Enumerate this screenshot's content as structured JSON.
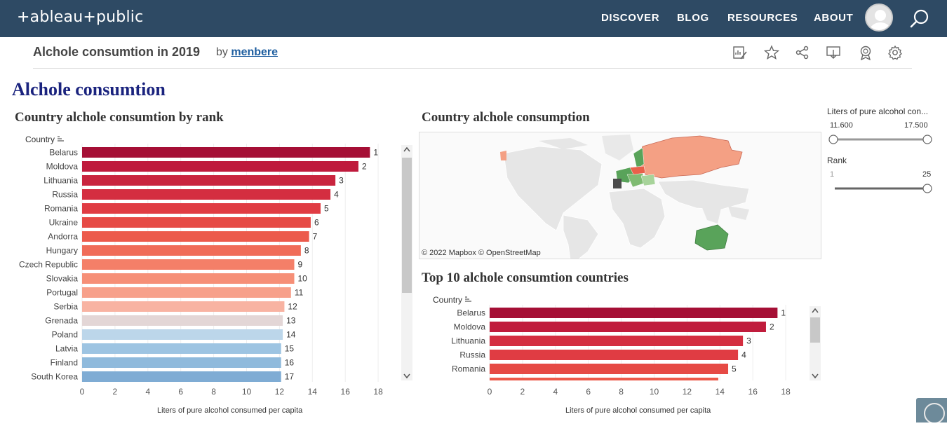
{
  "brand": {
    "logo_text": "+ableau+public"
  },
  "nav": {
    "discover": "DISCOVER",
    "blog": "BLOG",
    "resources": "RESOURCES",
    "about": "ABOUT"
  },
  "viz": {
    "title": "Alchole consumtion in 2019",
    "by": "by",
    "author": "menbere"
  },
  "dashboard": {
    "title": "Alchole consumtion"
  },
  "rank_sheet": {
    "title": "Country alchole consumtion by rank",
    "field_header": "Country",
    "axis_title": "Liters of pure alcohol consumed per capita"
  },
  "map_sheet": {
    "title": "Country alchole consumption",
    "attribution": "© 2022 Mapbox  © OpenStreetMap"
  },
  "top10_sheet": {
    "title": "Top 10  alchole consumtion countries",
    "field_header": "Country",
    "axis_title": "Liters of pure alcohol consumed per capita"
  },
  "filters": {
    "liters": {
      "title": "Liters of pure alcohol con...",
      "min": "11.600",
      "max": "17.500"
    },
    "rank": {
      "title": "Rank",
      "min": "1",
      "max": "25"
    }
  },
  "colors": {
    "topbar": "#2e4a64",
    "title_blue": "#1a237e"
  },
  "chart_data": [
    {
      "type": "bar",
      "orientation": "horizontal",
      "title": "Country alchole consumtion by rank",
      "xlabel": "Liters of pure alcohol consumed per capita",
      "xlim": [
        0,
        19
      ],
      "xticks": [
        "0",
        "2",
        "4",
        "6",
        "8",
        "10",
        "12",
        "14",
        "16",
        "18"
      ],
      "categories": [
        "Belarus",
        "Moldova",
        "Lithuania",
        "Russia",
        "Romania",
        "Ukraine",
        "Andorra",
        "Hungary",
        "Czech Republic",
        "Slovakia",
        "Portugal",
        "Serbia",
        "Grenada",
        "Poland",
        "Latvia",
        "Finland",
        "South Korea"
      ],
      "values": [
        17.5,
        16.8,
        15.4,
        15.1,
        14.5,
        13.9,
        13.8,
        13.3,
        12.9,
        12.9,
        12.7,
        12.3,
        12.2,
        12.2,
        12.1,
        12.1,
        12.1
      ],
      "labels": [
        "1",
        "2",
        "3",
        "4",
        "5",
        "6",
        "7",
        "8",
        "9",
        "10",
        "11",
        "12",
        "13",
        "14",
        "15",
        "16",
        "17"
      ],
      "colors": [
        "#a50f35",
        "#bf1a3c",
        "#c9243e",
        "#d42e40",
        "#e03c43",
        "#e64a45",
        "#ec5a4b",
        "#f06c58",
        "#f47f68",
        "#f68f77",
        "#f7a08a",
        "#f8b3a2",
        "#e3d6d6",
        "#bcd6ea",
        "#9dc4e2",
        "#8fbadc",
        "#7facd4"
      ]
    },
    {
      "type": "bar",
      "orientation": "horizontal",
      "title": "Top 10  alchole consumtion countries",
      "xlabel": "Liters of pure alcohol consumed per capita",
      "xlim": [
        0,
        19
      ],
      "xticks": [
        "0",
        "2",
        "4",
        "6",
        "8",
        "10",
        "12",
        "14",
        "16",
        "18"
      ],
      "categories": [
        "Belarus",
        "Moldova",
        "Lithuania",
        "Russia",
        "Romania"
      ],
      "values": [
        17.5,
        16.8,
        15.4,
        15.1,
        14.5
      ],
      "labels": [
        "1",
        "2",
        "3",
        "4",
        "5"
      ],
      "colors": [
        "#a50f35",
        "#c01c3c",
        "#d42e40",
        "#e03c43",
        "#e64a45"
      ]
    }
  ]
}
